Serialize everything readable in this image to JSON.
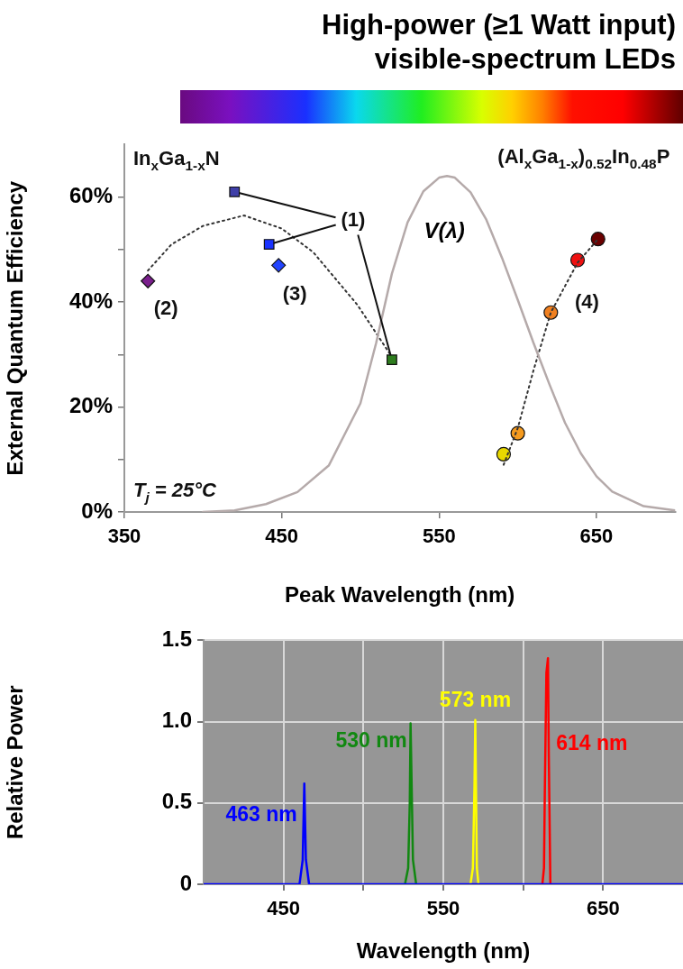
{
  "chart_data": [
    {
      "type": "scatter",
      "title": "High-power (≥1 Watt input)",
      "subtitle": "visible-spectrum LEDs",
      "xlabel": "Peak Wavelength (nm)",
      "ylabel": "External Quantum Efficiency",
      "xlim": [
        350,
        700
      ],
      "xticks": [
        350,
        450,
        550,
        650
      ],
      "ylim": [
        0,
        70
      ],
      "yticks": [
        {
          "value": 0,
          "label": "0%"
        },
        {
          "value": 10,
          "label": null
        },
        {
          "value": 20,
          "label": "20%"
        },
        {
          "value": 30,
          "label": null
        },
        {
          "value": 40,
          "label": "40%"
        },
        {
          "value": 50,
          "label": null
        },
        {
          "value": 60,
          "label": "60%"
        }
      ],
      "series": [
        {
          "type": "line",
          "name": "V(λ)",
          "color": "#b5aaaa",
          "marker": "none",
          "line_style": "solid",
          "x": [
            400,
            420,
            440,
            460,
            480,
            500,
            510,
            520,
            530,
            540,
            550,
            555,
            560,
            570,
            580,
            590,
            600,
            610,
            620,
            630,
            640,
            650,
            660,
            680,
            700
          ],
          "values": [
            0,
            0.3,
            1.5,
            3.8,
            8.9,
            20.7,
            32.2,
            45.4,
            55.2,
            61.1,
            63.7,
            64,
            63.7,
            60.9,
            55.7,
            48.4,
            40.4,
            32.2,
            24.4,
            17,
            11.2,
            6.8,
            3.9,
            1.1,
            0.3
          ]
        },
        {
          "type": "line",
          "color": "#333333",
          "marker": "none",
          "line_style": "dotted",
          "x": [
            365,
            380,
            400,
            426,
            450,
            470,
            498,
            519
          ],
          "values": [
            46,
            51,
            54.5,
            56.5,
            54,
            49.5,
            39.5,
            30
          ]
        },
        {
          "type": "line",
          "color": "#333333",
          "marker": "none",
          "line_style": "dotted",
          "x": [
            591,
            600,
            610,
            621,
            638,
            651
          ],
          "values": [
            9,
            16,
            27,
            38,
            47.5,
            52
          ]
        },
        {
          "type": "scatter",
          "marker": "square",
          "colors": [
            "#3f3fa8",
            "#1a33ff",
            "#2e7d1e"
          ],
          "x": [
            420,
            442,
            520
          ],
          "values": [
            61,
            51,
            29
          ]
        },
        {
          "type": "scatter",
          "marker": "diamond",
          "colors": [
            "#7a1f8c",
            "#2244ff"
          ],
          "x": [
            365,
            448
          ],
          "values": [
            44,
            47
          ]
        },
        {
          "type": "scatter",
          "marker": "circle",
          "colors": [
            "#e8d800",
            "#f59a1e",
            "#f08020",
            "#ee1111",
            "#6b0000"
          ],
          "x": [
            591,
            600,
            621,
            638,
            651
          ],
          "values": [
            11,
            15,
            38,
            48,
            52
          ]
        }
      ],
      "annotations": [
        "In$_{x}$Ga$_{1-x}$N",
        "(Al$_{x}$Ga$_{1-x}$)$_{0.52}$In$_{0.48}$P",
        "T$_{j}$ = 25°C",
        {
          "text": "(1)",
          "x": 520,
          "y": 29
        },
        {
          "text": "(2)",
          "x": 365,
          "y": 44
        },
        {
          "text": "(3)",
          "x": 448,
          "y": 47
        },
        {
          "text": "(4)",
          "x": 621,
          "y": 38
        }
      ]
    },
    {
      "type": "line",
      "xlabel": "Wavelength (nm)",
      "ylabel": "Relative Power",
      "grid": true,
      "xlim": [
        400,
        700
      ],
      "xticks": [
        450,
        {
          "value": 500,
          "label": null
        },
        550,
        {
          "value": 600,
          "label": null
        },
        650
      ],
      "ylim": [
        0,
        1.5
      ],
      "yticks": [
        0,
        0.5,
        {
          "value": 1,
          "label": "1.0"
        },
        1.5
      ],
      "series": [
        {
          "name": "463 nm",
          "color": "#0000ff",
          "x": [
            400,
            460,
            462,
            463,
            464,
            466,
            700
          ],
          "values": [
            0,
            0,
            0.15,
            0.62,
            0.15,
            0,
            0
          ]
        },
        {
          "name": "530 nm",
          "color": "#118811",
          "x": [
            526,
            528,
            529,
            529.5,
            531,
            533
          ],
          "values": [
            0,
            0.1,
            0.5,
            0.99,
            0.15,
            0
          ]
        },
        {
          "name": "573 nm",
          "color": "#ffff00",
          "x": [
            567,
            568.5,
            569.5,
            570,
            571,
            572
          ],
          "values": [
            0,
            0.1,
            0.6,
            1.01,
            0.1,
            0
          ]
        },
        {
          "name": "614 nm",
          "color": "#ff0000",
          "x": [
            612,
            613,
            613.5,
            614.5,
            615.5,
            616,
            617
          ],
          "values": [
            0,
            0.1,
            0.55,
            1.3,
            1.39,
            0.8,
            0
          ]
        }
      ]
    }
  ]
}
